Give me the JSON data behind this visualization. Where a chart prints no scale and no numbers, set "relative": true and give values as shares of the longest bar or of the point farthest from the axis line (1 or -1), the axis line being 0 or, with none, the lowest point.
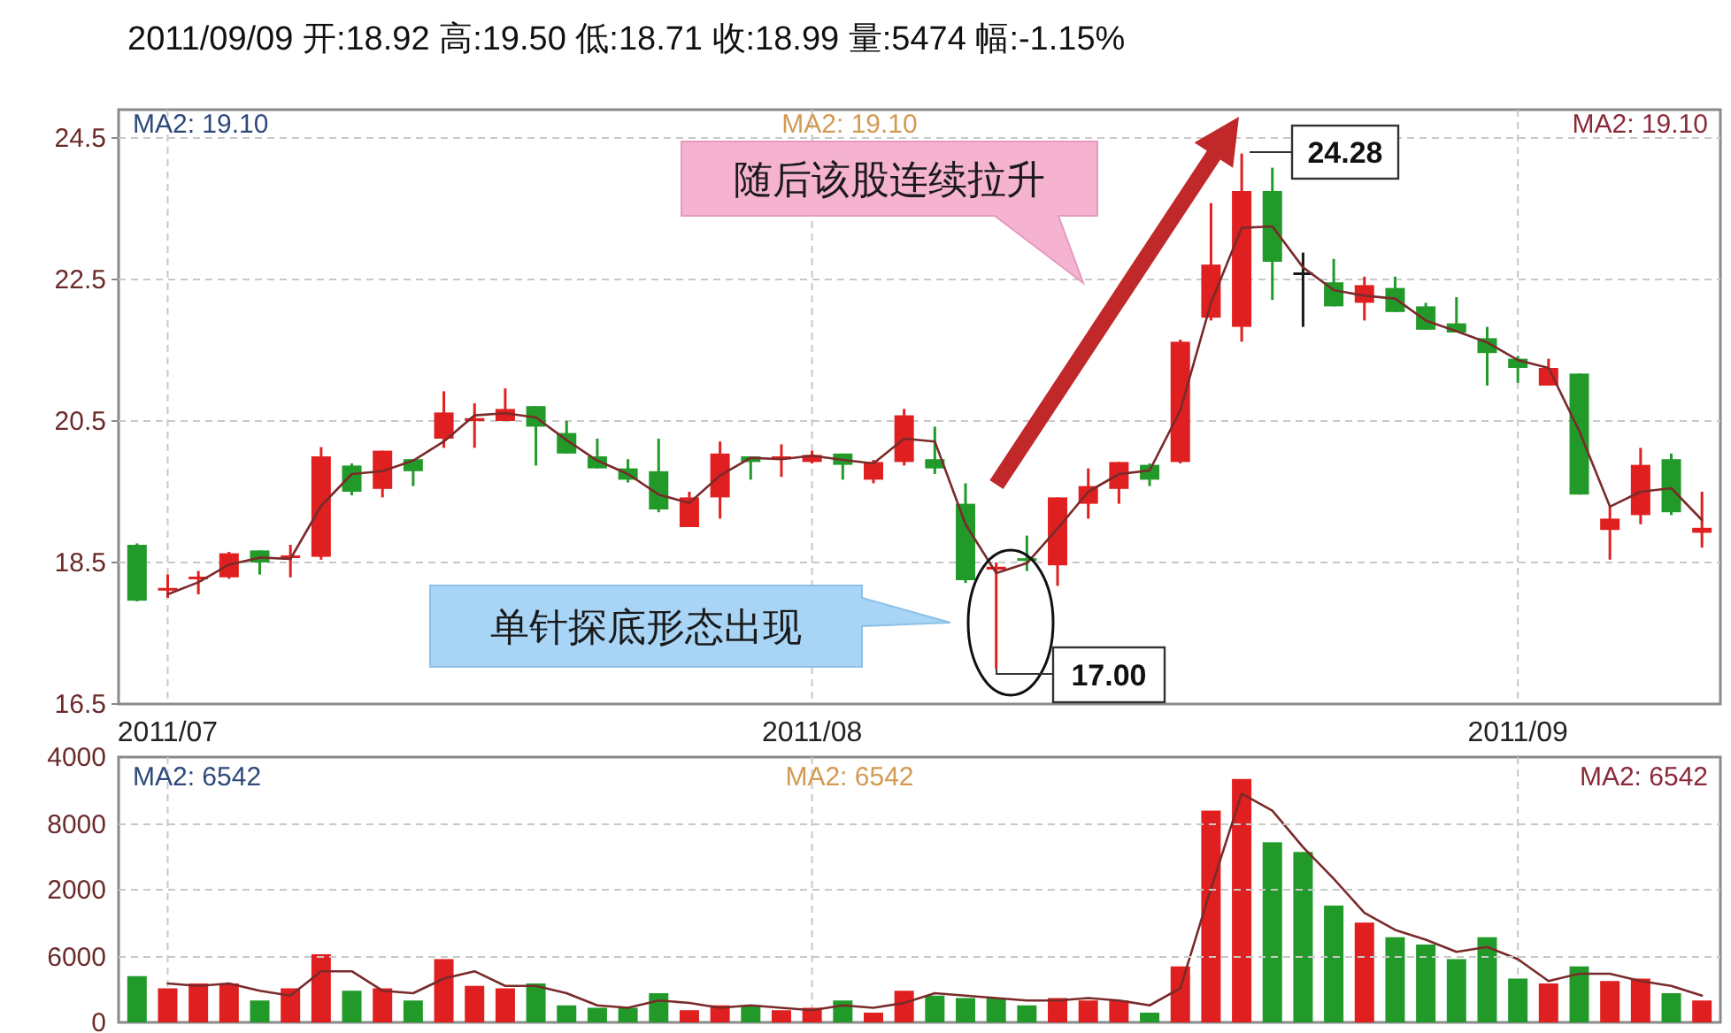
{
  "chart_data": [
    {
      "type": "candlestick",
      "title": "2011/09/09 开:18.92 高:19.50 低:18.71 收:18.99 量:5474 幅:-1.15%",
      "categories": [
        null,
        "2011/07",
        null,
        null,
        null,
        null,
        null,
        null,
        null,
        null,
        null,
        null,
        null,
        null,
        null,
        null,
        null,
        null,
        null,
        null,
        null,
        null,
        "2011/08",
        null,
        null,
        null,
        null,
        null,
        null,
        null,
        null,
        null,
        null,
        null,
        null,
        null,
        null,
        null,
        null,
        null,
        null,
        null,
        null,
        null,
        null,
        "2011/09",
        null,
        null,
        null,
        null,
        null,
        null
      ],
      "ohlc": [
        [
          18.75,
          18.77,
          17.95,
          17.96
        ],
        [
          18.12,
          18.33,
          18.0,
          18.14
        ],
        [
          18.27,
          18.38,
          18.05,
          18.3
        ],
        [
          18.29,
          18.65,
          18.27,
          18.63
        ],
        [
          18.67,
          18.67,
          18.33,
          18.5
        ],
        [
          18.58,
          18.75,
          18.29,
          18.6
        ],
        [
          18.58,
          20.13,
          18.54,
          20.0
        ],
        [
          19.87,
          19.9,
          19.45,
          19.5
        ],
        [
          19.54,
          20.08,
          19.42,
          20.08
        ],
        [
          19.96,
          19.96,
          19.58,
          19.79
        ],
        [
          20.25,
          20.92,
          20.12,
          20.62
        ],
        [
          20.5,
          20.75,
          20.12,
          20.54
        ],
        [
          20.5,
          20.96,
          20.5,
          20.67
        ],
        [
          20.71,
          20.71,
          19.87,
          20.42
        ],
        [
          20.33,
          20.5,
          20.04,
          20.04
        ],
        [
          20.0,
          20.25,
          19.83,
          19.83
        ],
        [
          19.83,
          19.96,
          19.63,
          19.67
        ],
        [
          19.79,
          20.25,
          19.21,
          19.25
        ],
        [
          19.0,
          19.5,
          19.0,
          19.42
        ],
        [
          19.42,
          20.21,
          19.12,
          20.04
        ],
        [
          20.0,
          20.0,
          19.67,
          19.92
        ],
        [
          19.96,
          20.17,
          19.71,
          20.0
        ],
        [
          19.92,
          20.08,
          19.9,
          20.02
        ],
        [
          20.04,
          20.04,
          19.67,
          19.88
        ],
        [
          19.67,
          19.95,
          19.62,
          19.92
        ],
        [
          19.92,
          20.67,
          19.87,
          20.58
        ],
        [
          19.96,
          20.42,
          19.75,
          19.83
        ],
        [
          19.33,
          19.62,
          18.21,
          18.25
        ],
        [
          18.4,
          18.5,
          17.0,
          18.44
        ],
        [
          18.56,
          18.88,
          18.38,
          18.54
        ],
        [
          18.46,
          19.42,
          18.17,
          19.42
        ],
        [
          19.33,
          19.83,
          19.12,
          19.58
        ],
        [
          19.54,
          19.92,
          19.33,
          19.92
        ],
        [
          19.88,
          19.9,
          19.58,
          19.67
        ],
        [
          19.92,
          21.65,
          19.9,
          21.62
        ],
        [
          21.96,
          23.58,
          21.92,
          22.71
        ],
        [
          21.83,
          24.28,
          21.62,
          23.75
        ],
        [
          23.75,
          24.08,
          22.21,
          22.75
        ],
        [
          22.6,
          22.88,
          21.83,
          22.58
        ],
        [
          22.46,
          22.79,
          22.12,
          22.12
        ],
        [
          22.17,
          22.54,
          21.92,
          22.42
        ],
        [
          22.38,
          22.54,
          22.04,
          22.04
        ],
        [
          22.12,
          22.17,
          21.79,
          21.79
        ],
        [
          21.88,
          22.25,
          21.75,
          21.75
        ],
        [
          21.67,
          21.83,
          21.0,
          21.46
        ],
        [
          21.38,
          21.42,
          21.04,
          21.25
        ],
        [
          21.0,
          21.38,
          21.0,
          21.25
        ],
        [
          21.17,
          21.17,
          19.46,
          19.46
        ],
        [
          18.96,
          19.29,
          18.54,
          19.12
        ],
        [
          19.17,
          20.12,
          19.04,
          19.88
        ],
        [
          19.96,
          20.04,
          19.17,
          19.21
        ],
        [
          18.92,
          19.5,
          18.71,
          18.99
        ]
      ],
      "colors": [
        "#229a2a",
        "#e02020",
        "#e02020",
        "#e02020",
        "#229a2a",
        "#e02020",
        "#e02020",
        "#229a2a",
        "#e02020",
        "#229a2a",
        "#e02020",
        "#e02020",
        "#e02020",
        "#229a2a",
        "#229a2a",
        "#229a2a",
        "#229a2a",
        "#229a2a",
        "#e02020",
        "#e02020",
        "#229a2a",
        "#e02020",
        "#e02020",
        "#229a2a",
        "#e02020",
        "#e02020",
        "#229a2a",
        "#229a2a",
        "#e02020",
        "#229a2a",
        "#e02020",
        "#e02020",
        "#e02020",
        "#229a2a",
        "#e02020",
        "#e02020",
        "#e02020",
        "#229a2a",
        "#1a1a1a",
        "#229a2a",
        "#e02020",
        "#229a2a",
        "#229a2a",
        "#229a2a",
        "#229a2a",
        "#229a2a",
        "#e02020",
        "#229a2a",
        "#e02020",
        "#e02020",
        "#229a2a",
        "#e02020"
      ],
      "series": [
        {
          "type": "line",
          "color": "#7a2a2a",
          "values": [
            null,
            18.05,
            18.22,
            18.47,
            18.57,
            18.55,
            19.3,
            19.75,
            19.79,
            19.94,
            20.21,
            20.58,
            20.61,
            20.55,
            20.23,
            19.94,
            19.75,
            19.46,
            19.34,
            19.73,
            19.98,
            19.96,
            20.01,
            19.95,
            19.9,
            20.25,
            20.21,
            19.04,
            18.35,
            18.49,
            18.98,
            19.5,
            19.75,
            19.8,
            20.65,
            22.17,
            23.23,
            23.25,
            22.67,
            22.35,
            22.27,
            22.23,
            21.92,
            21.77,
            21.61,
            21.36,
            21.25,
            20.36,
            19.29,
            19.5,
            19.55,
            19.1
          ]
        }
      ],
      "ylim": [
        16.5,
        24.9
      ],
      "yticks": [
        16.5,
        18.5,
        20.5,
        22.5,
        24.5
      ],
      "grid": true,
      "annotations": [
        "MA2: 19.10",
        "MA2: 19.10",
        "MA2: 19.10",
        "随后该股连续拉升",
        "单针探底形态出现",
        "24.28",
        "17.00"
      ]
    },
    {
      "type": "bar",
      "categories": [
        null,
        null,
        null,
        null,
        null,
        null,
        null,
        null,
        null,
        null,
        null,
        null,
        null,
        null,
        null,
        null,
        null,
        null,
        null,
        null,
        null,
        null,
        null,
        null,
        null,
        null,
        null,
        null,
        null,
        null,
        null,
        null,
        null,
        null,
        null,
        null,
        null,
        null,
        null,
        null,
        null,
        null,
        null,
        null,
        null,
        null,
        null,
        null,
        null,
        null,
        null,
        null
      ],
      "series": [
        {
          "type": "bar",
          "values": [
            0.19,
            0.14,
            0.16,
            0.16,
            0.09,
            0.14,
            0.28,
            0.13,
            0.14,
            0.09,
            0.26,
            0.15,
            0.14,
            0.16,
            0.07,
            0.06,
            0.06,
            0.12,
            0.05,
            0.07,
            0.07,
            0.05,
            0.06,
            0.09,
            0.04,
            0.13,
            0.11,
            0.1,
            0.1,
            0.07,
            0.1,
            0.09,
            0.09,
            0.04,
            0.23,
            0.87,
            1,
            0.74,
            0.7,
            0.48,
            0.41,
            0.35,
            0.32,
            0.26,
            0.35,
            0.18,
            0.16,
            0.23,
            0.17,
            0.18,
            0.12,
            0.09
          ],
          "colors": [
            "#229a2a",
            "#e02020",
            "#e02020",
            "#e02020",
            "#229a2a",
            "#e02020",
            "#e02020",
            "#229a2a",
            "#e02020",
            "#229a2a",
            "#e02020",
            "#e02020",
            "#e02020",
            "#229a2a",
            "#229a2a",
            "#229a2a",
            "#229a2a",
            "#229a2a",
            "#e02020",
            "#e02020",
            "#229a2a",
            "#e02020",
            "#e02020",
            "#229a2a",
            "#e02020",
            "#e02020",
            "#229a2a",
            "#229a2a",
            "#229a2a",
            "#229a2a",
            "#e02020",
            "#e02020",
            "#e02020",
            "#229a2a",
            "#e02020",
            "#e02020",
            "#e02020",
            "#229a2a",
            "#229a2a",
            "#229a2a",
            "#e02020",
            "#229a2a",
            "#229a2a",
            "#229a2a",
            "#229a2a",
            "#229a2a",
            "#e02020",
            "#229a2a",
            "#e02020",
            "#e02020",
            "#229a2a",
            "#e02020"
          ]
        },
        {
          "type": "line",
          "color": "#7a2a2a",
          "values": [
            null,
            0.16,
            0.15,
            0.16,
            0.13,
            0.11,
            0.21,
            0.21,
            0.13,
            0.12,
            0.18,
            0.21,
            0.15,
            0.15,
            0.12,
            0.07,
            0.06,
            0.09,
            0.08,
            0.06,
            0.07,
            0.06,
            0.05,
            0.07,
            0.06,
            0.08,
            0.12,
            0.11,
            0.1,
            0.09,
            0.09,
            0.1,
            0.09,
            0.07,
            0.14,
            0.55,
            0.94,
            0.87,
            0.72,
            0.59,
            0.45,
            0.38,
            0.34,
            0.29,
            0.31,
            0.26,
            0.17,
            0.2,
            0.2,
            0.17,
            0.15,
            0.11
          ]
        }
      ],
      "relative": true,
      "grid": "x",
      "annotations": [
        "MA2: 6542",
        "MA2: 6542",
        "MA2: 6542",
        "4000",
        "8000",
        "2000",
        "6000",
        "0"
      ]
    }
  ]
}
